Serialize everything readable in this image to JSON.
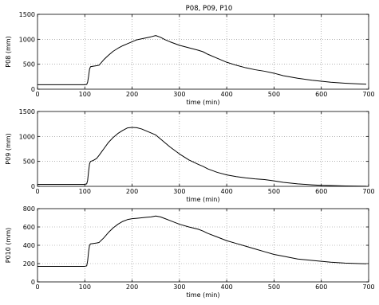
{
  "figure": {
    "title": "P08, P09, P10"
  },
  "chart_data": [
    {
      "type": "line",
      "title": "P08, P09, P10",
      "xlabel": "time (min)",
      "ylabel": "P08 (mm)",
      "xlim": [
        0,
        700
      ],
      "ylim": [
        0,
        1500
      ],
      "xticks": [
        0,
        100,
        200,
        300,
        400,
        500,
        600,
        700
      ],
      "yticks": [
        0,
        500,
        1000,
        1500
      ],
      "grid": true,
      "series": [
        {
          "x": [
            0,
            50,
            100,
            104,
            106,
            108,
            110,
            112,
            118,
            125,
            130,
            140,
            150,
            160,
            170,
            180,
            190,
            200,
            210,
            220,
            230,
            240,
            250,
            260,
            270,
            280,
            300,
            320,
            340,
            350,
            360,
            380,
            400,
            420,
            440,
            460,
            480,
            500,
            520,
            550,
            580,
            600,
            620,
            650,
            680,
            695
          ],
          "y": [
            90,
            90,
            90,
            95,
            140,
            260,
            400,
            450,
            460,
            470,
            480,
            590,
            680,
            760,
            820,
            870,
            910,
            950,
            990,
            1010,
            1030,
            1050,
            1075,
            1040,
            990,
            950,
            880,
            830,
            780,
            750,
            700,
            620,
            540,
            480,
            430,
            390,
            360,
            320,
            270,
            220,
            180,
            160,
            140,
            120,
            105,
            100
          ]
        }
      ]
    },
    {
      "type": "line",
      "xlabel": "time (min)",
      "ylabel": "P09 (mm)",
      "xlim": [
        0,
        700
      ],
      "ylim": [
        0,
        1500
      ],
      "xticks": [
        0,
        100,
        200,
        300,
        400,
        500,
        600,
        700
      ],
      "yticks": [
        0,
        500,
        1000,
        1500
      ],
      "grid": true,
      "series": [
        {
          "x": [
            0,
            50,
            100,
            104,
            106,
            108,
            110,
            112,
            118,
            125,
            130,
            140,
            150,
            160,
            170,
            180,
            190,
            200,
            210,
            220,
            230,
            240,
            250,
            260,
            270,
            280,
            300,
            320,
            340,
            350,
            360,
            380,
            400,
            420,
            440,
            460,
            480,
            500,
            520,
            550,
            580,
            600,
            620,
            650,
            680,
            695
          ],
          "y": [
            40,
            40,
            40,
            50,
            120,
            300,
            450,
            500,
            520,
            560,
            620,
            750,
            880,
            980,
            1060,
            1120,
            1170,
            1180,
            1175,
            1150,
            1110,
            1070,
            1030,
            950,
            870,
            790,
            650,
            530,
            440,
            400,
            350,
            280,
            230,
            195,
            170,
            150,
            135,
            110,
            80,
            50,
            30,
            20,
            15,
            8,
            4,
            2
          ]
        }
      ]
    },
    {
      "type": "line",
      "xlabel": "time (min)",
      "ylabel": "P010 (mm)",
      "xlim": [
        0,
        700
      ],
      "ylim": [
        0,
        800
      ],
      "xticks": [
        0,
        100,
        200,
        300,
        400,
        500,
        600,
        700
      ],
      "yticks": [
        0,
        200,
        400,
        600,
        800
      ],
      "grid": true,
      "series": [
        {
          "x": [
            0,
            50,
            100,
            104,
            106,
            108,
            110,
            112,
            118,
            125,
            130,
            140,
            150,
            160,
            170,
            180,
            190,
            200,
            210,
            220,
            230,
            240,
            250,
            260,
            270,
            280,
            300,
            320,
            340,
            350,
            360,
            380,
            400,
            420,
            440,
            460,
            480,
            500,
            520,
            550,
            580,
            600,
            620,
            650,
            680,
            695
          ],
          "y": [
            170,
            170,
            170,
            175,
            230,
            330,
            400,
            415,
            420,
            425,
            430,
            480,
            540,
            590,
            630,
            660,
            680,
            690,
            695,
            700,
            705,
            710,
            720,
            710,
            690,
            670,
            630,
            600,
            575,
            555,
            530,
            490,
            450,
            420,
            390,
            360,
            330,
            300,
            280,
            250,
            235,
            225,
            215,
            205,
            200,
            198
          ]
        }
      ]
    }
  ]
}
